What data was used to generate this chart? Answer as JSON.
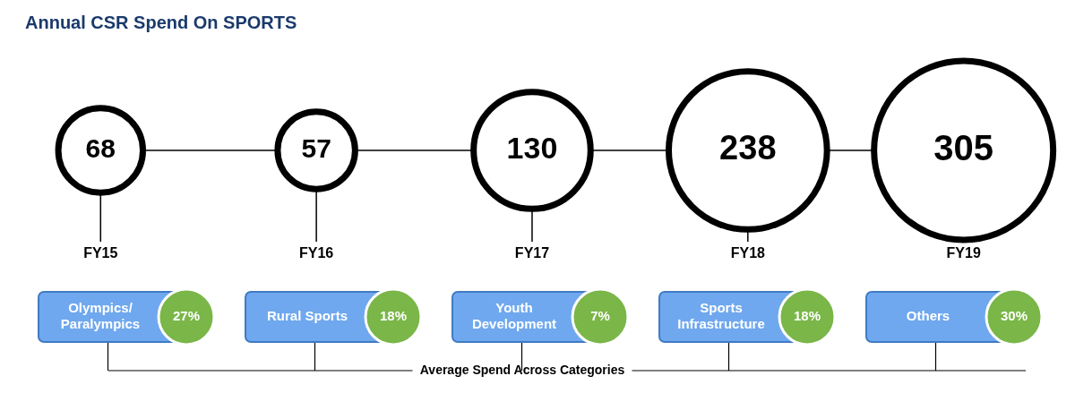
{
  "chart_data": [
    {
      "type": "other",
      "title": "Annual CSR Spend On SPORTS",
      "categories": [
        "FY15",
        "FY16",
        "FY17",
        "FY18",
        "FY19"
      ],
      "values": [
        68,
        57,
        130,
        238,
        305
      ],
      "data_labels": true
    },
    {
      "type": "other",
      "xlabel": "Average Spend Across Categories",
      "categories": [
        "Olympics/ Paralympics",
        "Rural Sports",
        "Youth Development",
        "Sports Infrastructure",
        "Others"
      ],
      "values": [
        27,
        18,
        7,
        18,
        30
      ],
      "value_labels": [
        "27%",
        "18%",
        "7%",
        "18%",
        "30%"
      ]
    }
  ]
}
